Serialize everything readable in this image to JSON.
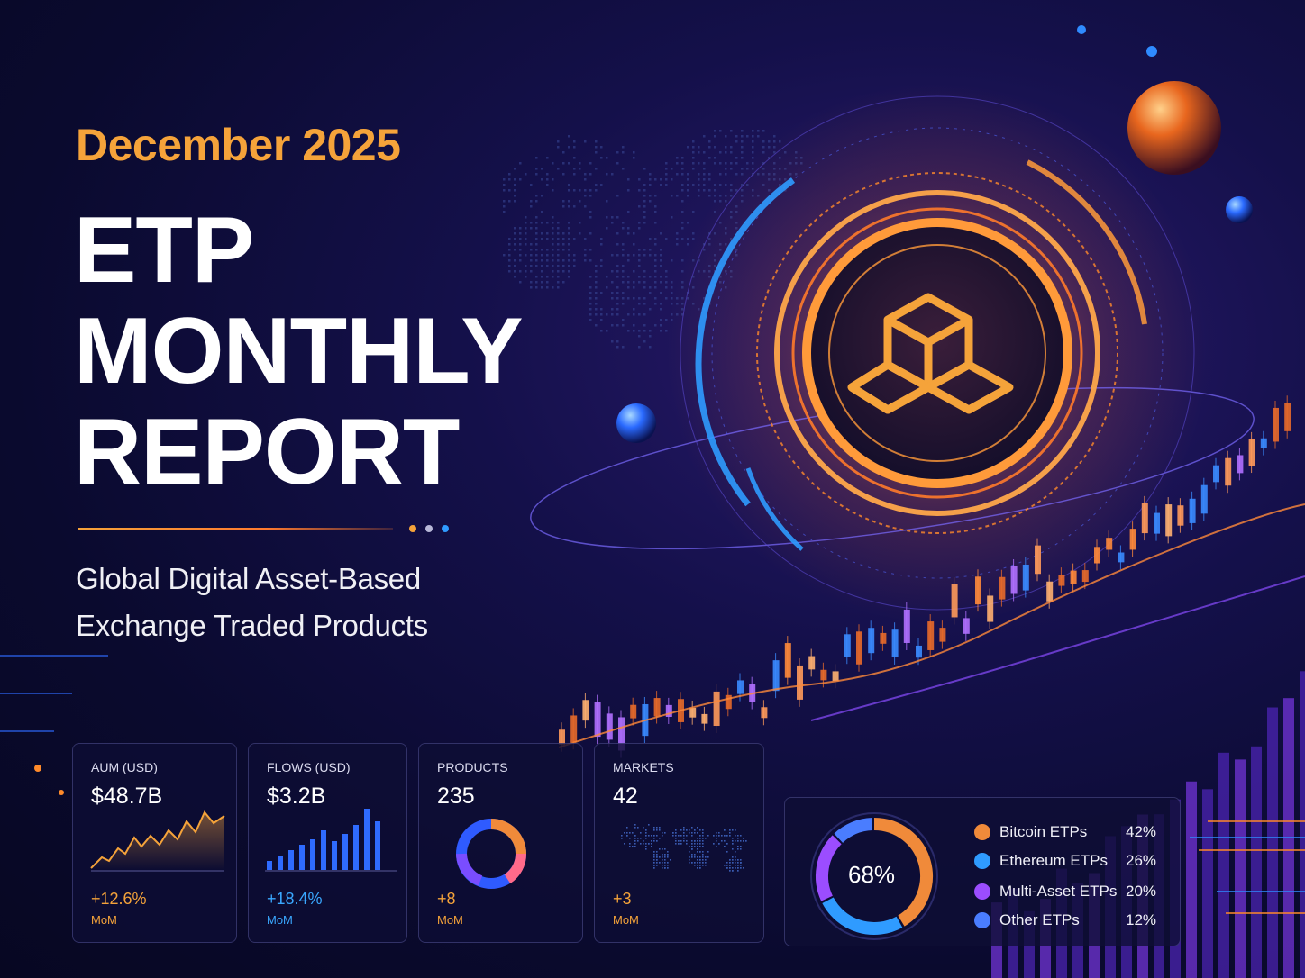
{
  "header": {
    "date": "December 2025",
    "title_lines": [
      "ETP",
      "MONTHLY",
      "REPORT"
    ],
    "description_lines": [
      "Global Digital Asset-Based",
      "Exchange Traded Products"
    ]
  },
  "colors": {
    "accent_orange": "#f5a33a",
    "accent_blue": "#2f8bff",
    "accent_purple": "#8a4dff",
    "background": "#0a0a2e"
  },
  "cards": [
    {
      "label": "AUM (USD)",
      "value": "$48.7B",
      "change": "+12.6%",
      "period": "MoM",
      "color": "#f5a33a"
    },
    {
      "label": "FLOWS (USD)",
      "value": "$3.2B",
      "change": "+18.4%",
      "period": "MoM",
      "color": "#3aa8ff"
    },
    {
      "label": "PRODUCTS",
      "value": "235",
      "change": "+8",
      "period": "MoM",
      "color": "#f5a33a"
    },
    {
      "label": "MARKETS",
      "value": "42",
      "change": "+3",
      "period": "MoM",
      "color": "#f5a33a"
    }
  ],
  "breakdown": {
    "center_label": "68%",
    "items": [
      {
        "label": "Bitcoin ETPs",
        "pct": "42%",
        "value": 42,
        "color": "#f08a3a"
      },
      {
        "label": "Ethereum ETPs",
        "pct": "26%",
        "value": 26,
        "color": "#2f9bff"
      },
      {
        "label": "Multi-Asset ETPs",
        "pct": "20%",
        "value": 20,
        "color": "#9b4dff"
      },
      {
        "label": "Other ETPs",
        "pct": "12%",
        "value": 12,
        "color": "#4a7dff"
      }
    ]
  }
}
